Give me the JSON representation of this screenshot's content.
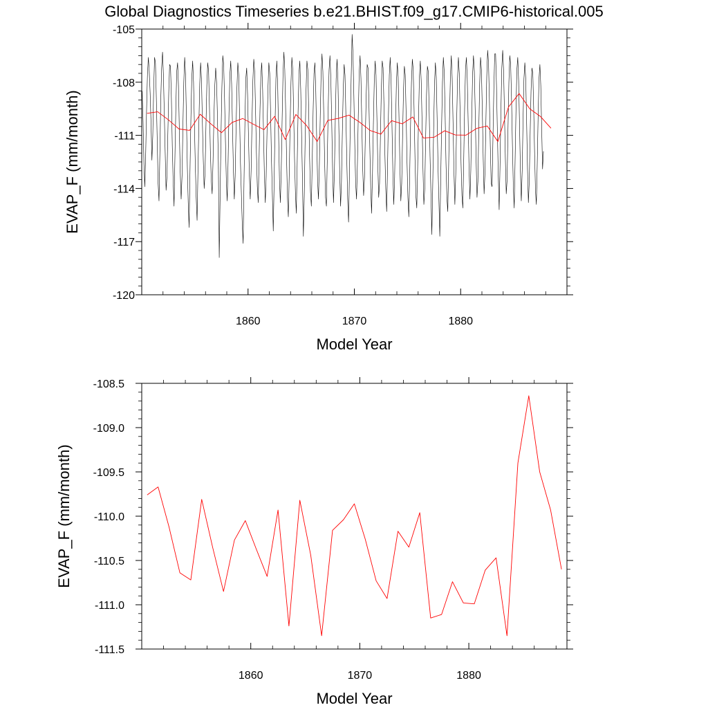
{
  "title": "Global Diagnostics Timeseries b.e21.BHIST.f09_g17.CMIP6-historical.005",
  "colors": {
    "monthly": "#000000",
    "annual": "#ff0000",
    "frame": "#000000",
    "background": "#ffffff"
  },
  "chart_data": [
    {
      "type": "line",
      "name": "top-panel",
      "xlabel": "Model Year",
      "ylabel": "EVAP_F (mm/month)",
      "xlim": [
        1850,
        1890
      ],
      "ylim": [
        -120,
        -105
      ],
      "xticks": [
        1860,
        1870,
        1880
      ],
      "xtick_labels": [
        "1860",
        "1870",
        "1880"
      ],
      "yticks": [
        -120,
        -117,
        -114,
        -111,
        -108,
        -105
      ],
      "ytick_labels": [
        "-120",
        "-117",
        "-114",
        "-111",
        "-108",
        "-105"
      ],
      "series": [
        {
          "name": "monthly",
          "color": "#000000",
          "x_start": 1850.04,
          "x_step": 0.08333,
          "values": [
            -108.5,
            -110.2,
            -112.6,
            -113.9,
            -112.0,
            -109.5,
            -107.5,
            -106.6,
            -107.4,
            -108.6,
            -110.3,
            -112.4,
            -111.0,
            -108.4,
            -106.6,
            -106.9,
            -108.9,
            -111.3,
            -113.7,
            -114.7,
            -112.0,
            -109.0,
            -107.2,
            -106.3,
            -107.6,
            -109.8,
            -112.0,
            -114.1,
            -113.3,
            -110.9,
            -108.6,
            -107.0,
            -107.1,
            -108.9,
            -111.6,
            -113.6,
            -115.0,
            -112.2,
            -109.5,
            -107.4,
            -106.9,
            -108.2,
            -110.8,
            -113.1,
            -114.6,
            -113.3,
            -110.5,
            -108.0,
            -106.6,
            -107.6,
            -110.1,
            -112.8,
            -114.8,
            -116.2,
            -113.0,
            -110.1,
            -107.8,
            -106.8,
            -108.0,
            -110.4,
            -112.7,
            -114.5,
            -115.8,
            -113.0,
            -110.4,
            -108.1,
            -106.9,
            -107.9,
            -110.3,
            -112.4,
            -114.0,
            -113.1,
            -110.5,
            -108.2,
            -106.9,
            -107.4,
            -109.5,
            -111.9,
            -113.5,
            -114.3,
            -112.5,
            -110.0,
            -108.2,
            -107.2,
            -108.0,
            -110.0,
            -112.5,
            -117.9,
            -114.5,
            -111.0,
            -108.3,
            -106.5,
            -107.0,
            -108.9,
            -111.3,
            -113.5,
            -114.7,
            -112.5,
            -109.8,
            -107.6,
            -106.8,
            -108.1,
            -110.6,
            -112.9,
            -114.6,
            -113.3,
            -110.6,
            -108.3,
            -106.9,
            -107.6,
            -110.0,
            -112.6,
            -114.3,
            -116.0,
            -117.1,
            -113.5,
            -110.3,
            -107.8,
            -107.2,
            -108.7,
            -111.0,
            -113.2,
            -114.6,
            -113.0,
            -110.2,
            -107.9,
            -106.7,
            -107.4,
            -109.6,
            -112.0,
            -113.9,
            -114.8,
            -112.3,
            -109.6,
            -107.6,
            -106.9,
            -108.4,
            -110.8,
            -113.3,
            -114.8,
            -113.3,
            -110.7,
            -108.4,
            -106.9,
            -107.5,
            -109.8,
            -112.4,
            -114.4,
            -116.4,
            -113.6,
            -110.4,
            -107.8,
            -106.8,
            -108.2,
            -110.9,
            -113.5,
            -114.8,
            -113.0,
            -110.1,
            -107.6,
            -106.3,
            -107.3,
            -109.6,
            -112.2,
            -114.5,
            -115.6,
            -113.3,
            -110.4,
            -108.0,
            -106.6,
            -107.3,
            -109.7,
            -112.3,
            -114.2,
            -115.4,
            -112.6,
            -109.7,
            -107.5,
            -106.8,
            -108.4,
            -111.0,
            -113.6,
            -116.7,
            -114.4,
            -111.2,
            -108.5,
            -106.8,
            -107.3,
            -109.6,
            -112.2,
            -114.2,
            -115.0,
            -112.4,
            -109.6,
            -107.5,
            -106.9,
            -108.5,
            -111.1,
            -113.5,
            -114.6,
            -112.8,
            -110.0,
            -107.6,
            -106.4,
            -107.4,
            -109.8,
            -112.5,
            -114.5,
            -115.0,
            -112.3,
            -109.5,
            -107.3,
            -106.5,
            -107.8,
            -110.3,
            -113.0,
            -114.8,
            -113.1,
            -110.2,
            -107.8,
            -106.7,
            -107.9,
            -110.5,
            -113.1,
            -115.0,
            -113.6,
            -110.8,
            -108.4,
            -107.0,
            -107.6,
            -109.9,
            -112.4,
            -114.6,
            -115.9,
            -113.2,
            -110.2,
            -107.6,
            -105.3,
            -106.4,
            -108.8,
            -111.5,
            -113.7,
            -114.6,
            -112.6,
            -109.8,
            -107.5,
            -106.5,
            -107.8,
            -110.4,
            -112.9,
            -114.4,
            -113.4,
            -110.9,
            -108.6,
            -107.0,
            -107.2,
            -109.2,
            -111.7,
            -113.9,
            -115.4,
            -113.2,
            -110.4,
            -108.0,
            -106.8,
            -107.6,
            -110.0,
            -112.6,
            -114.5,
            -113.7,
            -111.0,
            -108.4,
            -106.8,
            -107.2,
            -109.4,
            -112.0,
            -114.0,
            -115.3,
            -112.8,
            -109.9,
            -107.6,
            -106.6,
            -107.9,
            -110.4,
            -113.0,
            -114.9,
            -113.4,
            -110.5,
            -108.1,
            -106.9,
            -107.7,
            -110.1,
            -112.8,
            -114.7,
            -113.7,
            -111.0,
            -108.5,
            -107.1,
            -107.6,
            -109.8,
            -112.5,
            -114.5,
            -115.6,
            -113.3,
            -110.4,
            -108.0,
            -106.7,
            -107.3,
            -109.6,
            -112.3,
            -114.4,
            -115.1,
            -112.8,
            -110.0,
            -107.7,
            -106.8,
            -107.9,
            -110.3,
            -112.9,
            -114.9,
            -114.0,
            -111.2,
            -108.7,
            -107.1,
            -107.4,
            -109.6,
            -112.2,
            -114.3,
            -116.6,
            -113.9,
            -110.8,
            -108.2,
            -106.9,
            -107.7,
            -110.1,
            -112.8,
            -114.7,
            -116.7,
            -113.6,
            -110.6,
            -108.0,
            -106.6,
            -107.4,
            -109.8,
            -112.6,
            -114.5,
            -115.3,
            -112.7,
            -109.9,
            -107.6,
            -106.5,
            -107.8,
            -110.4,
            -113.1,
            -114.9,
            -113.2,
            -110.3,
            -107.8,
            -106.6,
            -107.5,
            -109.9,
            -112.6,
            -114.4,
            -115.1,
            -112.4,
            -109.5,
            -107.3,
            -106.6,
            -107.8,
            -110.2,
            -112.8,
            -114.6,
            -113.0,
            -110.1,
            -107.6,
            -106.5,
            -107.4,
            -109.7,
            -112.4,
            -114.5,
            -113.6,
            -110.7,
            -108.1,
            -106.6,
            -107.3,
            -109.6,
            -112.3,
            -114.3,
            -113.1,
            -110.3,
            -107.7,
            -106.2,
            -106.9,
            -109.0,
            -111.6,
            -113.7,
            -113.9,
            -111.2,
            -108.4,
            -106.4,
            -106.4,
            -108.2,
            -110.8,
            -113.2,
            -115.2,
            -112.7,
            -109.6,
            -107.2,
            -106.2,
            -107.3,
            -109.7,
            -112.3,
            -114.3,
            -113.5,
            -110.6,
            -108.0,
            -106.5,
            -107.0,
            -109.0,
            -111.6,
            -113.9,
            -115.1,
            -112.4,
            -109.6,
            -107.3,
            -106.6,
            -107.9,
            -110.4,
            -113.0,
            -114.7,
            -113.0,
            -110.1,
            -107.8,
            -106.9,
            -107.8,
            -110.2,
            -112.9,
            -114.8,
            -113.6,
            -110.9,
            -108.5,
            -107.2,
            -107.5,
            -109.5,
            -112.0,
            -114.1,
            -114.9,
            -112.6,
            -109.9,
            -107.8,
            -107.0,
            -108.2,
            -110.6,
            -112.9,
            -111.9
          ]
        },
        {
          "name": "annual",
          "color": "#ff0000",
          "x": [
            1850.5,
            1851.5,
            1852.5,
            1853.5,
            1854.5,
            1855.5,
            1856.5,
            1857.5,
            1858.5,
            1859.5,
            1860.5,
            1861.5,
            1862.5,
            1863.5,
            1864.5,
            1865.5,
            1866.5,
            1867.5,
            1868.5,
            1869.5,
            1870.5,
            1871.5,
            1872.5,
            1873.5,
            1874.5,
            1875.5,
            1876.5,
            1877.5,
            1878.5,
            1879.5,
            1880.5,
            1881.5,
            1882.5,
            1883.5,
            1884.5,
            1885.5,
            1886.5,
            1887.5,
            1888.5
          ],
          "values": [
            -109.76,
            -109.67,
            -110.12,
            -110.64,
            -110.72,
            -109.81,
            -110.35,
            -110.85,
            -110.27,
            -110.05,
            -110.37,
            -110.68,
            -109.93,
            -111.24,
            -109.82,
            -110.44,
            -111.35,
            -110.16,
            -110.04,
            -109.86,
            -110.26,
            -110.73,
            -110.93,
            -110.17,
            -110.35,
            -109.96,
            -111.15,
            -111.11,
            -110.74,
            -110.98,
            -110.99,
            -110.61,
            -110.47,
            -111.35,
            -109.4,
            -108.64,
            -109.5,
            -109.93,
            -110.6
          ]
        }
      ]
    },
    {
      "type": "line",
      "name": "bottom-panel",
      "xlabel": "Model Year",
      "ylabel": "EVAP_F (mm/month)",
      "xlim": [
        1850,
        1889
      ],
      "ylim": [
        -111.5,
        -108.5
      ],
      "xticks": [
        1860,
        1870,
        1880
      ],
      "xtick_labels": [
        "1860",
        "1870",
        "1880"
      ],
      "yticks": [
        -111.5,
        -111.0,
        -110.5,
        -110.0,
        -109.5,
        -109.0,
        -108.5
      ],
      "ytick_labels": [
        "-111.5",
        "-111.0",
        "-110.5",
        "-110.0",
        "-109.5",
        "-109.0",
        "-108.5"
      ],
      "series": [
        {
          "name": "annual",
          "color": "#ff0000",
          "x": [
            1850.5,
            1851.5,
            1852.5,
            1853.5,
            1854.5,
            1855.5,
            1856.5,
            1857.5,
            1858.5,
            1859.5,
            1860.5,
            1861.5,
            1862.5,
            1863.5,
            1864.5,
            1865.5,
            1866.5,
            1867.5,
            1868.5,
            1869.5,
            1870.5,
            1871.5,
            1872.5,
            1873.5,
            1874.5,
            1875.5,
            1876.5,
            1877.5,
            1878.5,
            1879.5,
            1880.5,
            1881.5,
            1882.5,
            1883.5,
            1884.5,
            1885.5,
            1886.5,
            1887.5,
            1888.5
          ],
          "values": [
            -109.76,
            -109.67,
            -110.12,
            -110.64,
            -110.72,
            -109.81,
            -110.35,
            -110.85,
            -110.27,
            -110.05,
            -110.37,
            -110.68,
            -109.93,
            -111.24,
            -109.82,
            -110.44,
            -111.35,
            -110.16,
            -110.04,
            -109.86,
            -110.26,
            -110.73,
            -110.93,
            -110.17,
            -110.35,
            -109.96,
            -111.15,
            -111.11,
            -110.74,
            -110.98,
            -110.99,
            -110.61,
            -110.47,
            -111.35,
            -109.4,
            -108.64,
            -109.5,
            -109.93,
            -110.6
          ]
        }
      ]
    }
  ]
}
